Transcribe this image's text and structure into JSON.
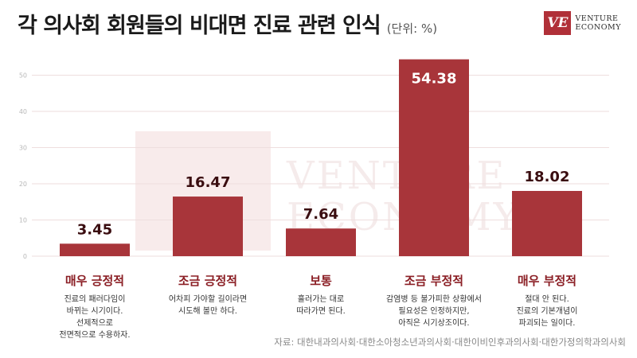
{
  "header": {
    "title": "각 의사회 회원들의 비대면 진료 관련 인식",
    "unit": "(단위: %)"
  },
  "logo": {
    "mark": "VE",
    "line1": "VENTURE",
    "line2": "ECONOMY"
  },
  "watermark": {
    "line1": "VENTURE",
    "line2": "ECONOMY"
  },
  "colors": {
    "bar": "#a8353a",
    "category_label": "#8b1f25",
    "value_label": "#3a0d10",
    "grid": "#eedede"
  },
  "chart_data": {
    "type": "bar",
    "categories": [
      "매우 긍정적",
      "조금 긍정적",
      "보통",
      "조금 부정적",
      "매우 부정적"
    ],
    "values": [
      3.45,
      16.47,
      7.64,
      54.38,
      18.02
    ],
    "value_labels": [
      "3.45",
      "16.47",
      "7.64",
      "54.38",
      "18.02"
    ],
    "descriptions": [
      [
        "진료의 패러다임이",
        "바뀌는 시기이다.",
        "선제적으로",
        "전면적으로 수용하자."
      ],
      [
        "어차피 가야할 길이라면",
        "시도해 볼만 하다."
      ],
      [
        "흘러가는 대로",
        "따라가면 된다."
      ],
      [
        "감염병 등 불가피한 상황에서",
        "필요성은 인정하지만,",
        "아직은 시기상조이다."
      ],
      [
        "절대 안 된다.",
        "진료의 기본개념이",
        "파괴되는 일이다."
      ]
    ],
    "yticks": [
      "0",
      "10",
      "20",
      "30",
      "40",
      "50"
    ],
    "ylim": [
      0,
      60
    ],
    "grid": true,
    "title": "각 의사회 회원들의 비대면 진료 관련 인식",
    "ylabel": "",
    "xlabel": ""
  },
  "footer": {
    "source": "자료: 대한내과의사회·대한소아청소년과의사회·대한이비인후과의사회·대한가정의학과의사회"
  }
}
